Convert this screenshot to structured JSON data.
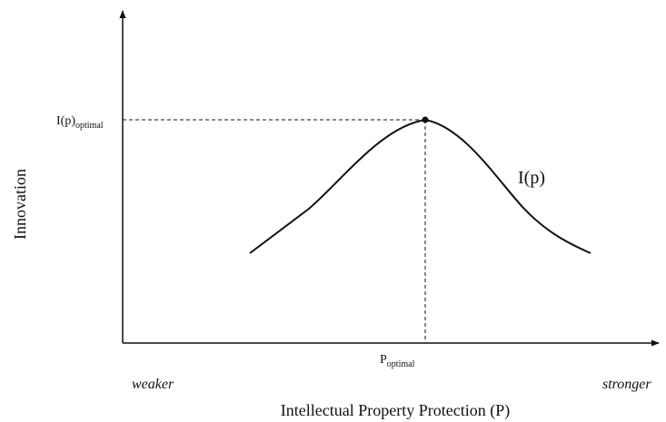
{
  "y_axis_title": "Innovation",
  "x_axis_title": "Intellectual Property Protection (P)",
  "x_axis_left": "weaker",
  "x_axis_right": "stronger",
  "y_marker": {
    "base": "I(p)",
    "sub": "optimal"
  },
  "x_marker": {
    "base": "P",
    "sub": "optimal"
  },
  "curve_label": "I(p)"
}
